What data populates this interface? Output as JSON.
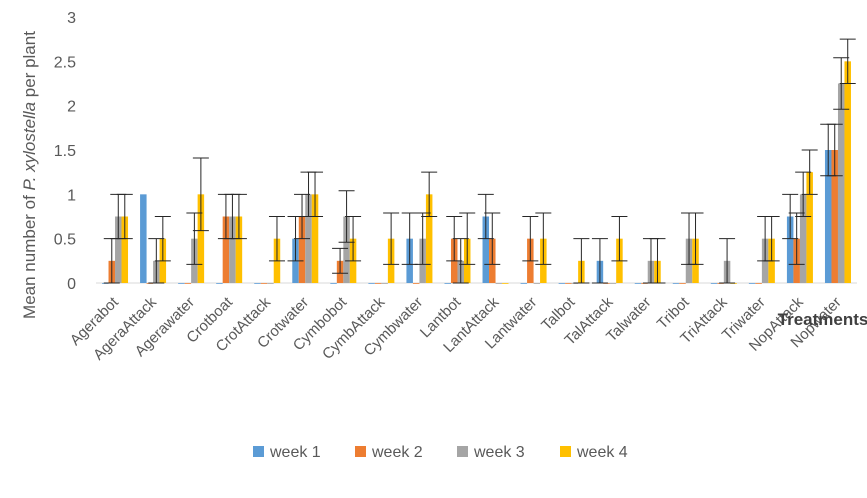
{
  "chart_data": {
    "type": "bar",
    "title": "",
    "xlabel": "Treatments",
    "ylabel_prefix": "Mean number of ",
    "ylabel_species": "P. xylostella",
    "ylabel_suffix": " per plant",
    "ylim": [
      0,
      3
    ],
    "yticks": [
      "0",
      "0.5",
      "1",
      "1.5",
      "2",
      "2.5",
      "3"
    ],
    "grid": false,
    "legend_position": "bottom",
    "categories": [
      "Agerabot",
      "AgeraAttack",
      "Agerawater",
      "Crotboat",
      "CrotAttack",
      "Crotwater",
      "Cymbobot",
      "CymbAttack",
      "Cymbwater",
      "Lantbot",
      "LantAttack",
      "Lantwater",
      "Talbot",
      "TalAttack",
      "Talwater",
      "Tribot",
      "TriAttack",
      "Triwater",
      "NopAttack",
      "Nopwater"
    ],
    "series": [
      {
        "name": "week 1",
        "color": "#5B9BD5",
        "values": [
          0,
          1,
          0,
          0,
          0,
          0.5,
          0,
          0,
          0.5,
          0,
          0.75,
          0,
          0,
          0.25,
          0,
          0,
          0,
          0,
          0.75,
          1.5
        ],
        "errors": [
          0,
          0,
          0,
          0,
          0,
          0.25,
          0,
          0,
          0.29,
          0,
          0.25,
          0,
          0,
          0.25,
          0,
          0,
          0,
          0,
          0.25,
          0.29
        ]
      },
      {
        "name": "week 2",
        "color": "#ED7D31",
        "values": [
          0.25,
          0,
          0,
          0.75,
          0,
          0.75,
          0.25,
          0,
          0,
          0.5,
          0.5,
          0.5,
          0,
          0,
          0,
          0,
          0,
          0,
          0.5,
          1.5
        ],
        "errors": [
          0.25,
          0,
          0,
          0.25,
          0,
          0.25,
          0.14,
          0,
          0,
          0.25,
          0.29,
          0.25,
          0,
          0,
          0,
          0,
          0,
          0,
          0.29,
          0.29
        ]
      },
      {
        "name": "week 3",
        "color": "#A5A5A5",
        "values": [
          0.75,
          0.25,
          0.5,
          0.75,
          0,
          1,
          0.75,
          0,
          0.5,
          0.25,
          0,
          0,
          0,
          0,
          0.25,
          0.5,
          0.25,
          0.5,
          1,
          2.25
        ],
        "errors": [
          0.25,
          0.25,
          0.29,
          0.25,
          0,
          0.25,
          0.29,
          0,
          0.29,
          0.25,
          0,
          0,
          0,
          0,
          0.25,
          0.29,
          0.25,
          0.25,
          0.25,
          0.29
        ]
      },
      {
        "name": "week 4",
        "color": "#FFC000",
        "values": [
          0.75,
          0.5,
          1,
          0.75,
          0.5,
          1,
          0.5,
          0.5,
          1,
          0.5,
          0,
          0.5,
          0.25,
          0.5,
          0.25,
          0.5,
          0,
          0.5,
          1.25,
          2.5
        ],
        "errors": [
          0.25,
          0.25,
          0.41,
          0.25,
          0.25,
          0.25,
          0.25,
          0.29,
          0.25,
          0.29,
          0,
          0.29,
          0.25,
          0.25,
          0.25,
          0.29,
          0,
          0.25,
          0.25,
          0.25
        ]
      }
    ]
  }
}
